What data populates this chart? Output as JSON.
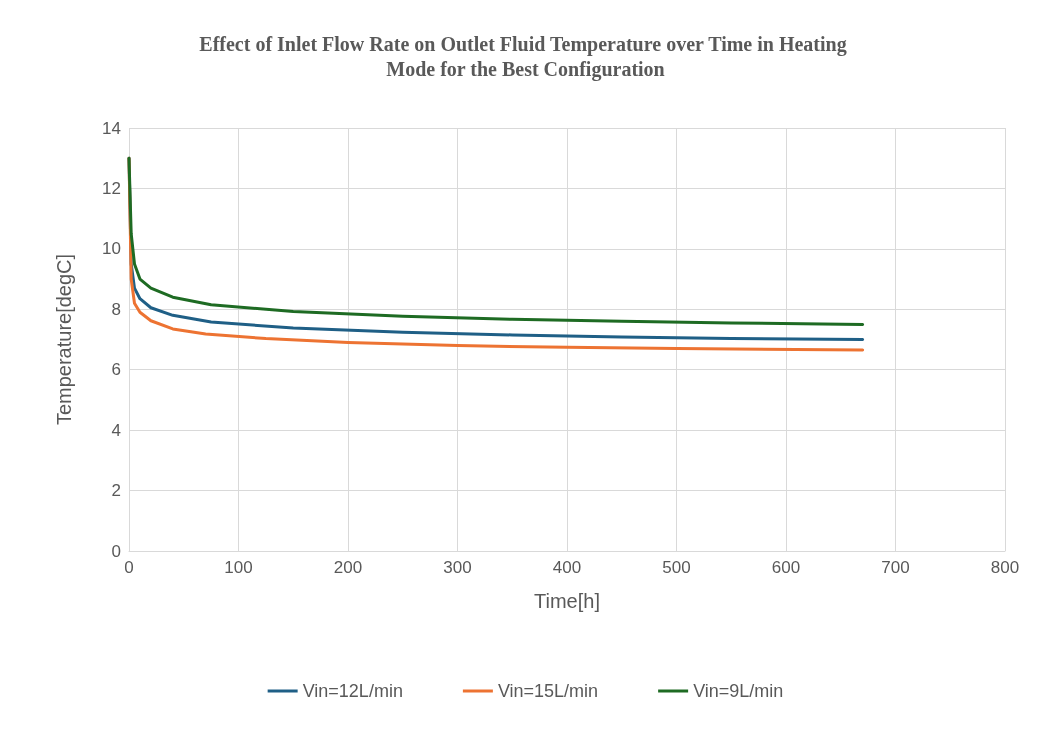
{
  "chart_data": {
    "type": "line",
    "title": "Effect of Inlet Flow Rate on Outlet Fluid Temperature over Time in Heating Mode for the Best Configuration",
    "xlabel": "Time[h]",
    "ylabel": "Temperature[degC]",
    "xlim": [
      0,
      800
    ],
    "xticks": [
      0,
      100,
      200,
      300,
      400,
      500,
      600,
      700,
      800
    ],
    "ylim": [
      0,
      14
    ],
    "yticks": [
      0,
      2,
      4,
      6,
      8,
      10,
      12,
      14
    ],
    "grid": true,
    "legend": "bottom",
    "marker": "none",
    "line_style": "solid",
    "series": [
      {
        "name": "Vin=12L/min",
        "color": "#1f5f86",
        "x": [
          0,
          2,
          5,
          10,
          20,
          40,
          75,
          150,
          250,
          350,
          450,
          550,
          670
        ],
        "values": [
          13,
          9.5,
          8.7,
          8.35,
          8.05,
          7.8,
          7.58,
          7.38,
          7.24,
          7.15,
          7.08,
          7.03,
          7.0
        ]
      },
      {
        "name": "Vin=15L/min",
        "color": "#ed7332",
        "x": [
          0,
          2,
          5,
          10,
          20,
          40,
          70,
          125,
          200,
          300,
          400,
          500,
          670
        ],
        "values": [
          13,
          9.0,
          8.2,
          7.9,
          7.62,
          7.35,
          7.18,
          7.03,
          6.9,
          6.8,
          6.74,
          6.7,
          6.65
        ]
      },
      {
        "name": "Vin=9L/min",
        "color": "#1e6b23",
        "x": [
          0,
          2,
          5,
          10,
          20,
          40,
          75,
          150,
          250,
          350,
          450,
          550,
          670
        ],
        "values": [
          13,
          10.5,
          9.5,
          9.0,
          8.7,
          8.4,
          8.15,
          7.93,
          7.77,
          7.67,
          7.6,
          7.55,
          7.5
        ]
      }
    ]
  }
}
